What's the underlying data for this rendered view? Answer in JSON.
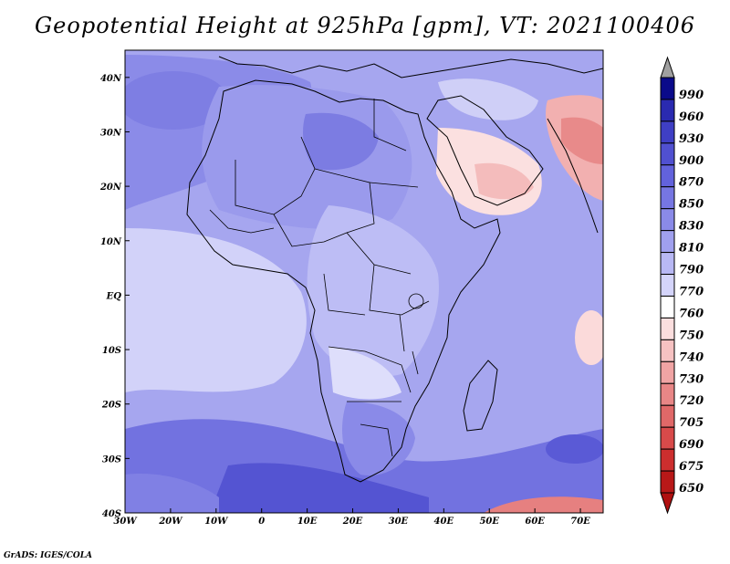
{
  "title": "Geopotential Height at 925hPa [gpm], VT: 2021100406",
  "footer": "GrADS: IGES/COLA",
  "map": {
    "region": "Africa",
    "lon_range": [
      -30,
      75
    ],
    "lat_range": [
      -40,
      45
    ],
    "lon_ticks": [
      "30W",
      "20W",
      "10W",
      "0",
      "10E",
      "20E",
      "30E",
      "40E",
      "50E",
      "60E",
      "70E"
    ],
    "lat_ticks": [
      "40S",
      "30S",
      "20S",
      "10S",
      "EQ",
      "10N",
      "20N",
      "30N",
      "40N"
    ]
  },
  "colorbar": {
    "levels": [
      "990",
      "960",
      "930",
      "900",
      "870",
      "850",
      "830",
      "810",
      "790",
      "770",
      "760",
      "750",
      "740",
      "730",
      "720",
      "705",
      "690",
      "675",
      "650"
    ],
    "colors": [
      "#0a0a8a",
      "#2a2ab0",
      "#3f3fc4",
      "#5050d0",
      "#6262dc",
      "#7676e2",
      "#8a8ae8",
      "#a0a0ee",
      "#b8b8f4",
      "#d4d4fa",
      "#ffffff",
      "#fbdede",
      "#f6c2c2",
      "#f0a4a4",
      "#e88686",
      "#e06868",
      "#d84a4a",
      "#cc2e2e",
      "#b81818"
    ],
    "top_arrow_color": "#a0a0a0",
    "bottom_arrow_color": "#b01010"
  }
}
